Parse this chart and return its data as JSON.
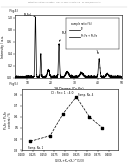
{
  "header_text": "Patent Application Publication    Feb. 11, 2016  Sheet 2 of 8    US 2016/0197341 A1",
  "fig_label_top": "(Fig4)",
  "fig_label_bottom": "(Fig5)",
  "xrd_xlabel": "2θ Degree (Cu Kα)",
  "xrd_ylabel": "Intensity / a.u.",
  "xrd_legend_title": "sample ratio (%)",
  "xrd_legend_lines": [
    "Pt",
    "Pt₄Fe + Pt₂Fe"
  ],
  "xrd_xlim": [
    5,
    50
  ],
  "xrd_ylim": [
    0,
    1.05
  ],
  "xrd_xticks": [
    10,
    20,
    30,
    40,
    50
  ],
  "scatter_xlabel": "X₂/(X₁+X₂+X₃)^(1/3)",
  "scatter_ylabel": "Pt₃Fe + Pt₄Fe\ncontent / %",
  "scatter_title": "Cl : Fe= 1 : 4.0",
  "scatter_xlim": [
    0.2,
    0.42
  ],
  "scatter_ylim": [
    0.3,
    0.85
  ],
  "scatter_x": [
    0.22,
    0.265,
    0.295,
    0.325,
    0.355,
    0.385
  ],
  "scatter_y": [
    0.38,
    0.43,
    0.63,
    0.78,
    0.6,
    0.5
  ],
  "bg_color": "#ffffff",
  "text_color": "#222222",
  "header_color": "#888888"
}
